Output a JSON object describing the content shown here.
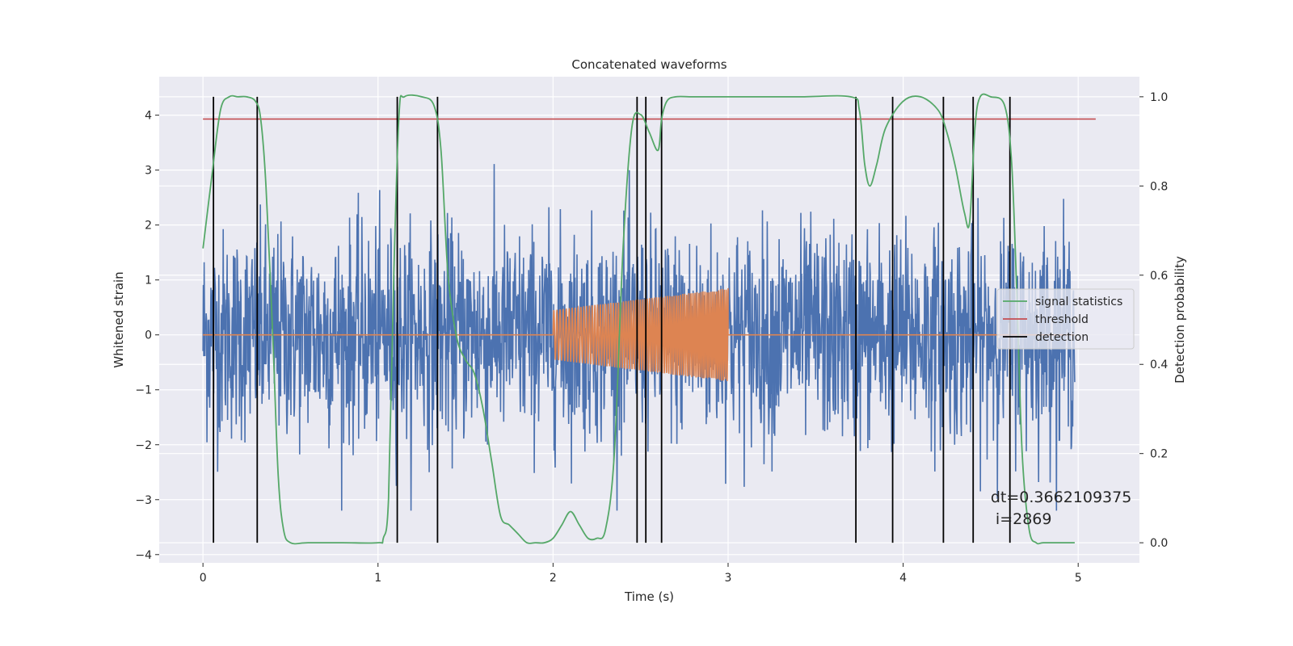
{
  "chart_data": {
    "type": "line",
    "title": "Concatenated waveforms",
    "xlabel": "Time (s)",
    "ylabel": "Whitened strain",
    "ylabel_right": "Detection probability",
    "xlim": [
      -0.25,
      5.35
    ],
    "ylim": [
      -4.15,
      4.7
    ],
    "ylim_right": [
      -0.045,
      1.045
    ],
    "x_ticks": [
      0,
      1,
      2,
      3,
      4,
      5
    ],
    "x_tick_labels": [
      "0",
      "1",
      "2",
      "3",
      "4",
      "5"
    ],
    "y_ticks": [
      -4,
      -3,
      -2,
      -1,
      0,
      1,
      2,
      3,
      4
    ],
    "y_tick_labels": [
      "−4",
      "−3",
      "−2",
      "−1",
      "0",
      "1",
      "2",
      "3",
      "4"
    ],
    "y2_ticks": [
      0.0,
      0.2,
      0.4,
      0.6,
      0.8,
      1.0
    ],
    "y2_tick_labels": [
      "0.0",
      "0.2",
      "0.4",
      "0.6",
      "0.8",
      "1.0"
    ],
    "grid": true,
    "legend_position": "center-right",
    "noise": {
      "color": "#4c72b0",
      "x_range": [
        0,
        4.98
      ],
      "description_free": true
    },
    "chirp": {
      "color": "#dd8452",
      "x": [
        0,
        2.0,
        2.0,
        3.0,
        3.0,
        4.98
      ],
      "amplitude": [
        0,
        0.45,
        0.45,
        0.85,
        0,
        0
      ],
      "cycles": 55
    },
    "series": [
      {
        "name": "signal statistics",
        "color": "#55a868",
        "axis": "right",
        "x": [
          0,
          0.05,
          0.1,
          0.15,
          0.2,
          0.25,
          0.3,
          0.33,
          0.36,
          0.4,
          0.43,
          0.46,
          0.5,
          0.6,
          0.8,
          1.0,
          1.03,
          1.06,
          1.09,
          1.12,
          1.15,
          1.25,
          1.32,
          1.36,
          1.4,
          1.45,
          1.5,
          1.55,
          1.6,
          1.65,
          1.7,
          1.75,
          1.8,
          1.85,
          1.9,
          1.95,
          2.0,
          2.05,
          2.1,
          2.15,
          2.2,
          2.25,
          2.3,
          2.35,
          2.4,
          2.45,
          2.5,
          2.55,
          2.6,
          2.62,
          2.65,
          2.7,
          2.8,
          3.0,
          3.4,
          3.7,
          3.75,
          3.78,
          3.81,
          3.85,
          3.9,
          4.0,
          4.1,
          4.2,
          4.25,
          4.3,
          4.35,
          4.38,
          4.41,
          4.44,
          4.5,
          4.58,
          4.62,
          4.65,
          4.68,
          4.72,
          4.76,
          4.8,
          4.9,
          4.98
        ],
        "y": [
          0.66,
          0.82,
          0.97,
          1.0,
          1.0,
          1.0,
          0.99,
          0.95,
          0.8,
          0.45,
          0.15,
          0.03,
          0.0,
          0.0,
          0.0,
          0.0,
          0.01,
          0.1,
          0.6,
          0.96,
          1.0,
          1.0,
          0.98,
          0.88,
          0.6,
          0.46,
          0.41,
          0.38,
          0.3,
          0.18,
          0.06,
          0.04,
          0.02,
          0.0,
          0.0,
          0.0,
          0.01,
          0.04,
          0.07,
          0.04,
          0.01,
          0.01,
          0.03,
          0.2,
          0.66,
          0.93,
          0.96,
          0.92,
          0.88,
          0.95,
          0.99,
          1.0,
          1.0,
          1.0,
          1.0,
          1.0,
          0.97,
          0.85,
          0.8,
          0.85,
          0.93,
          0.99,
          1.0,
          0.97,
          0.92,
          0.84,
          0.74,
          0.72,
          0.93,
          1.0,
          1.0,
          0.98,
          0.85,
          0.55,
          0.2,
          0.03,
          0.0,
          0.0,
          0.0,
          0.0
        ]
      },
      {
        "name": "threshold",
        "color": "#c44e52",
        "axis": "right",
        "x": [
          0,
          5.1
        ],
        "y": [
          0.95,
          0.95
        ]
      }
    ],
    "detection": {
      "name": "detection",
      "color": "#000000",
      "x": [
        0.06,
        0.31,
        1.11,
        1.34,
        2.48,
        2.53,
        2.62,
        3.73,
        3.94,
        4.23,
        4.4,
        4.61
      ],
      "y_range": [
        0.0,
        1.0
      ]
    },
    "annotation": {
      "line1": "dt=0.3662109375",
      "line2": " i=2869",
      "x": 4.5,
      "y": 0.1
    }
  }
}
